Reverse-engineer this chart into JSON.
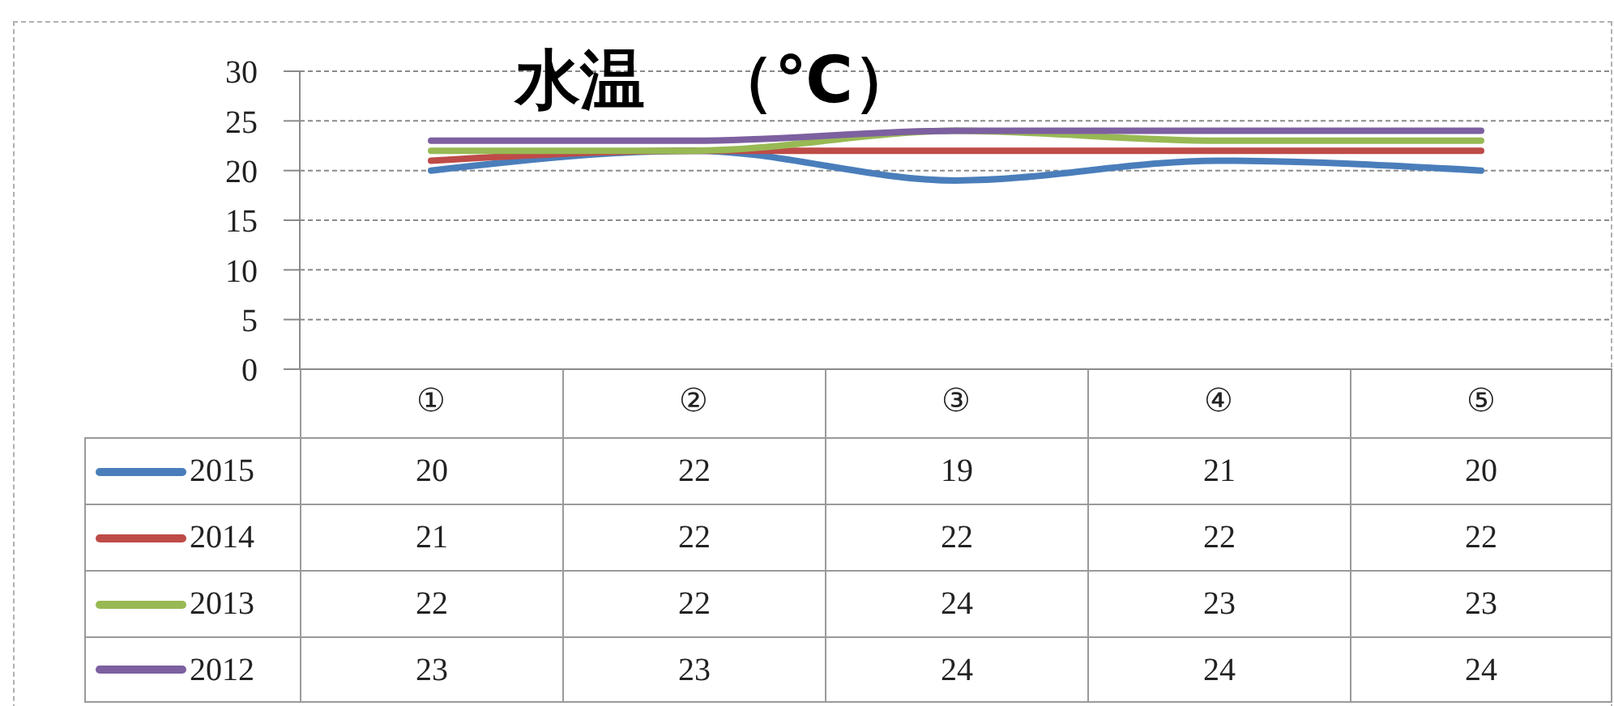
{
  "chart_data": {
    "type": "line",
    "title": "水温　（℃）",
    "categories": [
      "①",
      "②",
      "③",
      "④",
      "⑤"
    ],
    "series": [
      {
        "name": "2015",
        "color": "#4a7ebb",
        "values": [
          20,
          22,
          19,
          21,
          20
        ]
      },
      {
        "name": "2014",
        "color": "#be4b48",
        "values": [
          21,
          22,
          22,
          22,
          22
        ]
      },
      {
        "name": "2013",
        "color": "#98b954",
        "values": [
          22,
          22,
          24,
          23,
          23
        ]
      },
      {
        "name": "2012",
        "color": "#7d60a0",
        "values": [
          23,
          23,
          24,
          24,
          24
        ]
      }
    ],
    "ylim": [
      0,
      30
    ],
    "yticks": [
      0,
      5,
      10,
      15,
      20,
      25,
      30
    ],
    "grid": "y",
    "legend": "bottom left",
    "marker": "none",
    "data_labels": true
  }
}
